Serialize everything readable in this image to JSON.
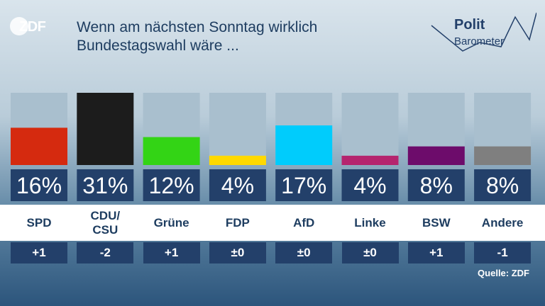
{
  "header": {
    "title": "Wenn am nächsten Sonntag wirklich\nBundestagswahl wäre ...",
    "logo_text": "ZDF",
    "barometer_word1": "Polit",
    "barometer_word2": "Barometer"
  },
  "source": "Quelle: ZDF",
  "chart_data": {
    "type": "bar",
    "title": "Wenn am nächsten Sonntag wirklich Bundestagswahl wäre ...",
    "categories": [
      "SPD",
      "CDU/\nCSU",
      "Grüne",
      "FDP",
      "AfD",
      "Linke",
      "BSW",
      "Andere"
    ],
    "values": [
      16,
      31,
      12,
      4,
      17,
      4,
      8,
      8
    ],
    "value_labels": [
      "16%",
      "31%",
      "12%",
      "4%",
      "17%",
      "4%",
      "8%",
      "8%"
    ],
    "changes": [
      "+1",
      "-2",
      "+1",
      "±0",
      "±0",
      "±0",
      "+1",
      "-1"
    ],
    "colors": [
      "#d52a0f",
      "#1c1c1c",
      "#33d415",
      "#ffd900",
      "#00ccfc",
      "#b5246e",
      "#6d0c6b",
      "#7f7f7f"
    ],
    "ylim": [
      0,
      31
    ],
    "xlabel": "",
    "ylabel": "",
    "grid": false,
    "legend": "none"
  }
}
